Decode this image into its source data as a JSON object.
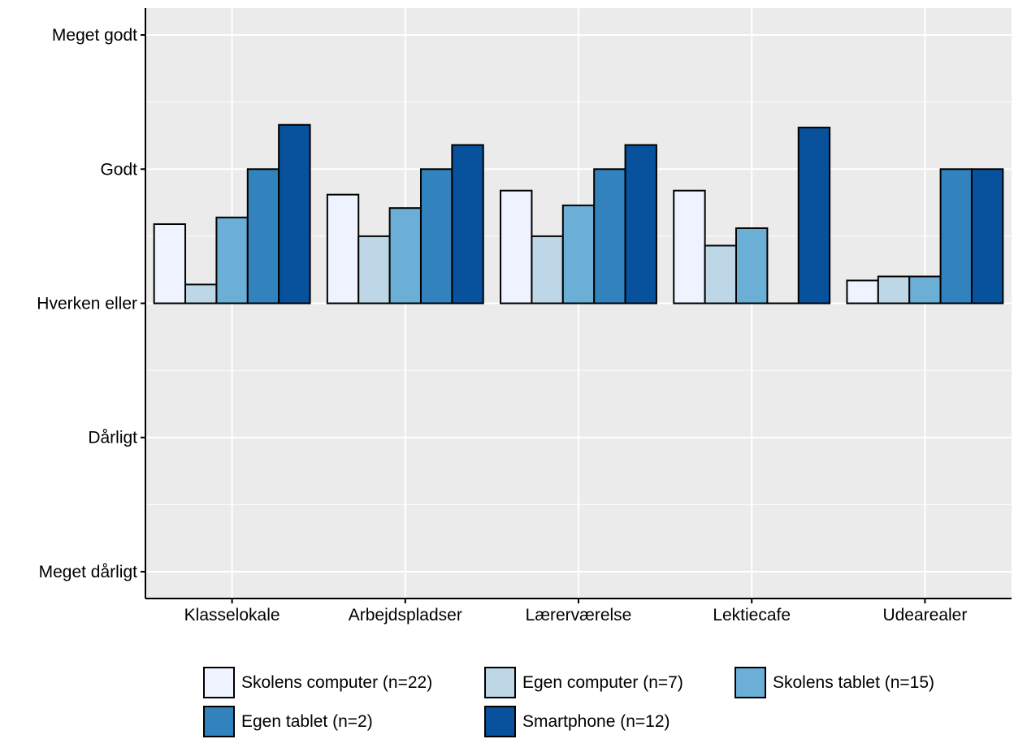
{
  "chart_data": {
    "type": "bar",
    "title": "",
    "xlabel": "",
    "ylabel": "",
    "categories": [
      "Klasselokale",
      "Arbejdspladser",
      "Lærerværelse",
      "Lektiecafe",
      "Udearealer"
    ],
    "y_ticks": [
      {
        "value": -2,
        "label": "Meget dårligt"
      },
      {
        "value": -1,
        "label": "Dårligt"
      },
      {
        "value": 0,
        "label": "Hverken eller"
      },
      {
        "value": 1,
        "label": "Godt"
      },
      {
        "value": 2,
        "label": "Meget godt"
      }
    ],
    "ylim": [
      -2.2,
      2.2
    ],
    "baseline": 0,
    "grid": true,
    "legend_position": "bottom",
    "series": [
      {
        "name": "Skolens computer (n=22)",
        "color": "#eff3ff",
        "values": [
          0.59,
          0.81,
          0.84,
          0.84,
          0.17
        ]
      },
      {
        "name": "Egen computer (n=7)",
        "color": "#bdd7e7",
        "values": [
          0.14,
          0.5,
          0.5,
          0.43,
          0.2
        ]
      },
      {
        "name": "Skolens tablet (n=15)",
        "color": "#6baed6",
        "values": [
          0.64,
          0.71,
          0.73,
          0.56,
          0.2
        ]
      },
      {
        "name": "Egen tablet (n=2)",
        "color": "#3182bd",
        "values": [
          1.0,
          1.0,
          1.0,
          0.0,
          1.0
        ]
      },
      {
        "name": "Smartphone (n=12)",
        "color": "#08519c",
        "values": [
          1.33,
          1.18,
          1.18,
          1.31,
          1.0
        ]
      }
    ]
  }
}
